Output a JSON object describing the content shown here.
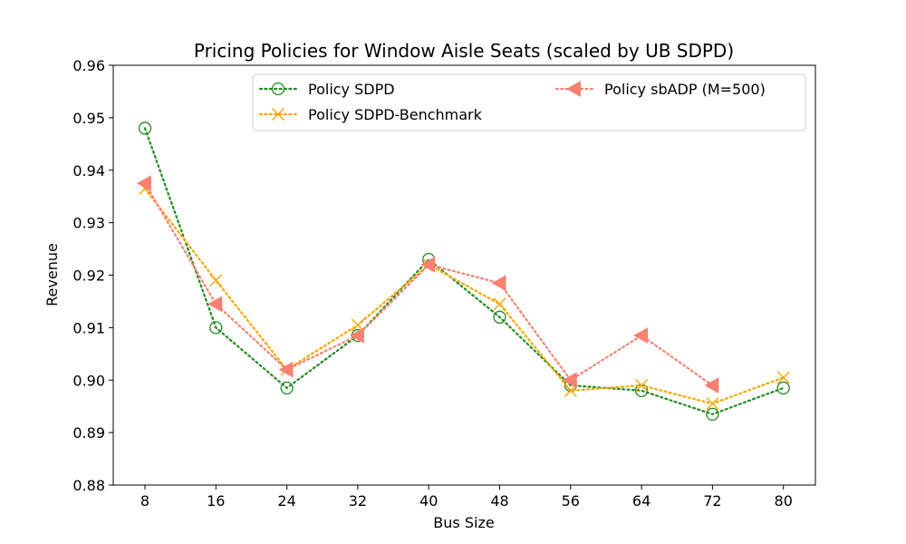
{
  "chart_data": {
    "type": "line",
    "title": "Pricing Policies for Window Aisle Seats (scaled by UB SDPD)",
    "xlabel": "Bus Size",
    "ylabel": "Revenue",
    "categories": [
      "8",
      "16",
      "24",
      "32",
      "40",
      "48",
      "56",
      "64",
      "72",
      "80"
    ],
    "ylim": [
      0.88,
      0.96
    ],
    "yticks": [
      "0.88",
      "0.89",
      "0.90",
      "0.91",
      "0.92",
      "0.93",
      "0.94",
      "0.95",
      "0.96"
    ],
    "grid": false,
    "legend_position": "top-right",
    "series": [
      {
        "name": "Policy SDPD",
        "color": "#228b22",
        "marker": "circle-dot",
        "values": [
          0.948,
          0.91,
          0.8985,
          0.9085,
          0.923,
          0.912,
          0.899,
          0.898,
          0.8935,
          0.8985
        ]
      },
      {
        "name": "Policy SDPD-Benchmark",
        "color": "#ffa500",
        "marker": "x",
        "values": [
          0.9365,
          0.919,
          0.902,
          0.9105,
          0.922,
          0.9145,
          0.898,
          0.899,
          0.8955,
          0.9005
        ]
      },
      {
        "name": "Policy sbADP (M=500)",
        "color": "#fa8072",
        "marker": "triangle-left",
        "values": [
          0.9375,
          0.9145,
          0.902,
          0.9085,
          0.922,
          0.9185,
          0.9,
          0.9085,
          0.899,
          null
        ]
      }
    ]
  }
}
